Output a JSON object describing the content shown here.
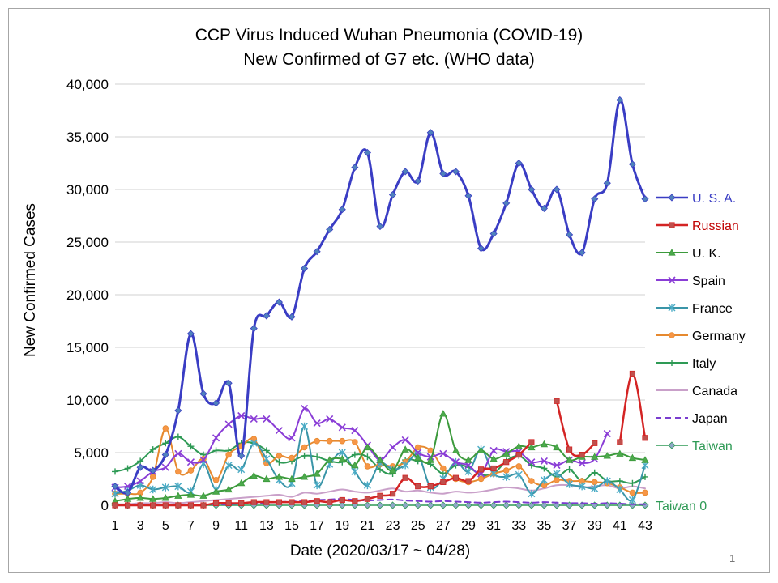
{
  "page_number": "1",
  "chart_data": {
    "type": "line",
    "title": "CCP Virus Induced Wuhan Pneumonia (COVID-19)",
    "subtitle": "New Confirmed of G7 etc.  (WHO data)",
    "xlabel": "Date (2020/03/17 ~ 04/28)",
    "ylabel": "New Confirmed Cases",
    "ylim": [
      0,
      40000
    ],
    "yticks": [
      0,
      5000,
      10000,
      15000,
      20000,
      25000,
      30000,
      35000,
      40000
    ],
    "ytick_labels": [
      "0",
      "5,000",
      "10,000",
      "15,000",
      "20,000",
      "25,000",
      "30,000",
      "35,000",
      "40,000"
    ],
    "x": [
      1,
      2,
      3,
      4,
      5,
      6,
      7,
      8,
      9,
      10,
      11,
      12,
      13,
      14,
      15,
      16,
      17,
      18,
      19,
      20,
      21,
      22,
      23,
      24,
      25,
      26,
      27,
      28,
      29,
      30,
      31,
      32,
      33,
      34,
      35,
      36,
      37,
      38,
      39,
      40,
      41,
      42,
      43
    ],
    "xtick_labels": [
      "1",
      "3",
      "5",
      "7",
      "9",
      "11",
      "13",
      "15",
      "17",
      "19",
      "21",
      "23",
      "25",
      "27",
      "29",
      "31",
      "33",
      "35",
      "37",
      "39",
      "41",
      "43"
    ],
    "grid": "horizontal",
    "legend_position": "right",
    "annotation": "Taiwan 0",
    "series": [
      {
        "name": "U. S. A.",
        "color": "#3a3dc4",
        "label_color": "#3a3dc4",
        "marker": "diamond",
        "marker_color": "#4f81bd",
        "width": 3,
        "values": [
          1800,
          1200,
          3600,
          3300,
          4800,
          9000,
          16300,
          10600,
          9700,
          11600,
          4700,
          16800,
          18000,
          19300,
          17900,
          22500,
          24100,
          26200,
          28100,
          32100,
          33500,
          26500,
          29500,
          31700,
          30800,
          35400,
          31500,
          31700,
          29400,
          24400,
          25800,
          28700,
          32500,
          30000,
          28200,
          30000,
          25700,
          24000,
          29100,
          30600,
          38500,
          32400,
          29100
        ]
      },
      {
        "name": "Russian",
        "color": "#d42424",
        "label_color": "#c00000",
        "marker": "square",
        "marker_color": "#c0504d",
        "width": 2.5,
        "values": [
          0,
          0,
          0,
          0,
          0,
          0,
          0,
          0,
          200,
          200,
          200,
          300,
          300,
          300,
          300,
          300,
          400,
          300,
          500,
          400,
          600,
          900,
          1100,
          2600,
          1800,
          1800,
          2200,
          2600,
          2300,
          3400,
          3500,
          4100,
          4800,
          6000,
          null,
          9900,
          5300,
          4800,
          5900,
          null,
          6000,
          12500,
          6400
        ]
      },
      {
        "name": "U. K.",
        "color": "#3c9a3c",
        "label_color": "#000000",
        "marker": "triangle",
        "marker_color": "#4caa4c",
        "width": 2,
        "values": [
          400,
          600,
          700,
          600,
          700,
          900,
          1000,
          900,
          1300,
          1500,
          2100,
          2800,
          2500,
          2700,
          2500,
          2700,
          3000,
          4300,
          4400,
          3800,
          5500,
          4300,
          3300,
          5300,
          4500,
          4300,
          8700,
          5200,
          4300,
          5200,
          4400,
          4900,
          5600,
          5500,
          5800,
          5500,
          4300,
          4600,
          4600,
          4700,
          4900,
          4500,
          4300
        ]
      },
      {
        "name": "Spain",
        "color": "#8a3dd6",
        "label_color": "#000000",
        "marker": "x",
        "marker_color": "#8a3dd6",
        "width": 2,
        "values": [
          1700,
          1800,
          2300,
          3200,
          3600,
          4900,
          4100,
          4300,
          6400,
          7700,
          8500,
          8200,
          8200,
          7100,
          6400,
          9200,
          7800,
          8200,
          7400,
          7100,
          5700,
          4300,
          5500,
          6200,
          5000,
          4600,
          4900,
          4100,
          3800,
          3000,
          5200,
          5100,
          5100,
          4100,
          4200,
          3800,
          4300,
          4000,
          4400,
          6800,
          null,
          null,
          null
        ]
      },
      {
        "name": "France",
        "color": "#3a95a8",
        "label_color": "#000000",
        "marker": "star",
        "marker_color": "#4bacc6",
        "width": 2,
        "values": [
          1100,
          1400,
          1900,
          1500,
          1700,
          1800,
          1300,
          3900,
          1500,
          3800,
          3400,
          5900,
          4400,
          2400,
          2100,
          7500,
          1900,
          3900,
          5000,
          3200,
          1900,
          4000,
          3400,
          3800,
          4800,
          1700,
          2500,
          4100,
          3200,
          5300,
          3000,
          2700,
          2900,
          1100,
          2400,
          3000,
          2000,
          1800,
          1600,
          2300,
          1500,
          500,
          3800
        ]
      },
      {
        "name": "Germany",
        "color": "#e6892f",
        "label_color": "#000000",
        "marker": "circle",
        "marker_color": "#f79646",
        "width": 2,
        "values": [
          1100,
          1100,
          1200,
          2700,
          7300,
          3200,
          3300,
          4400,
          2400,
          4800,
          5600,
          6300,
          4000,
          4700,
          4500,
          5500,
          6100,
          6100,
          6100,
          6000,
          3700,
          3900,
          3700,
          4100,
          5500,
          5200,
          3500,
          2500,
          2200,
          2500,
          3000,
          3300,
          3700,
          2300,
          1900,
          2400,
          2300,
          2300,
          2200,
          2100,
          1700,
          1200,
          1200
        ]
      },
      {
        "name": "Italy",
        "color": "#2e9a55",
        "label_color": "#000000",
        "marker": "plus",
        "marker_color": "#2e9a55",
        "width": 2,
        "values": [
          3200,
          3500,
          4200,
          5300,
          5900,
          6500,
          5600,
          4800,
          5200,
          5200,
          5900,
          5900,
          5200,
          4100,
          4200,
          4700,
          4600,
          4200,
          4100,
          4800,
          4600,
          3400,
          3000,
          4300,
          4200,
          3900,
          3000,
          3800,
          3600,
          2900,
          3000,
          4200,
          4700,
          3800,
          3500,
          2700,
          3400,
          2300,
          3100,
          2300,
          2300,
          2100,
          2700
        ]
      },
      {
        "name": "Canada",
        "color": "#c9a0c9",
        "label_color": "#000000",
        "marker": "none",
        "marker_color": "#c9a0c9",
        "width": 2,
        "values": [
          100,
          100,
          200,
          200,
          300,
          200,
          300,
          400,
          500,
          600,
          700,
          800,
          900,
          1000,
          800,
          1200,
          1100,
          1300,
          1500,
          1300,
          1200,
          1400,
          1600,
          1300,
          1400,
          1200,
          1100,
          1300,
          1200,
          1300,
          1500,
          1700,
          1600,
          1400,
          1600,
          1900,
          1900,
          1700,
          1800,
          1900,
          1600,
          1800,
          1600
        ]
      },
      {
        "name": "Japan",
        "color": "#7a3dcf",
        "label_color": "#000000",
        "marker": "none",
        "marker_color": "#7a3dcf",
        "width": 2,
        "dash": "7,5",
        "values": [
          20,
          30,
          40,
          50,
          50,
          40,
          60,
          70,
          80,
          100,
          150,
          200,
          250,
          300,
          350,
          400,
          500,
          550,
          600,
          500,
          450,
          500,
          550,
          450,
          400,
          350,
          400,
          350,
          300,
          250,
          300,
          350,
          300,
          250,
          300,
          250,
          200,
          200,
          150,
          200,
          150,
          100,
          100
        ]
      },
      {
        "name": "Taiwan",
        "color": "#2e9a55",
        "label_color": "#2e9a55",
        "marker": "diamond",
        "marker_color": "#8fa7c8",
        "width": 1.5,
        "values": [
          0,
          0,
          0,
          0,
          0,
          0,
          0,
          0,
          0,
          0,
          0,
          0,
          0,
          0,
          0,
          0,
          0,
          0,
          0,
          0,
          0,
          0,
          0,
          0,
          0,
          0,
          0,
          0,
          0,
          0,
          0,
          0,
          0,
          0,
          0,
          0,
          0,
          0,
          0,
          0,
          0,
          0,
          0
        ]
      }
    ]
  }
}
